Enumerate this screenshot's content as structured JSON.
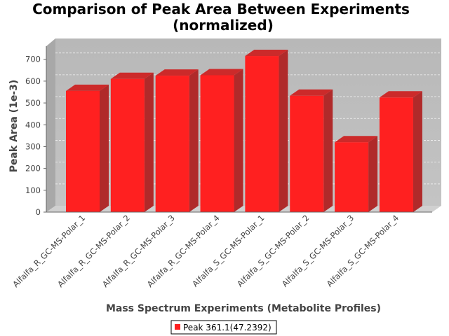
{
  "chart_data": {
    "type": "bar",
    "title": [
      "Comparison of Peak Area Between Experiments",
      "(normalized)"
    ],
    "xlabel": "Mass Spectrum Experiments (Metabolite Profiles)",
    "ylabel": "Peak Area (1e-3)",
    "ylim": [
      0,
      760
    ],
    "yticks": [
      0,
      100,
      200,
      300,
      400,
      500,
      600,
      700
    ],
    "grid": true,
    "legend_position": "bottom",
    "categories": [
      "Alfalfa_R_GC-MS-Polar_1",
      "Alfalfa_R_GC-MS-Polar_2",
      "Alfalfa_R_GC-MS-Polar_3",
      "Alfalfa_R_GC-MS-Polar_4",
      "Alfalfa_S_GC-MS-Polar_1",
      "Alfalfa_S_GC-MS-Polar_2",
      "Alfalfa_S_GC-MS-Polar_3",
      "Alfalfa_S_GC-MS-Polar_4"
    ],
    "series": [
      {
        "name": "Peak 361.1(47.2392)",
        "color": "#ff2020",
        "values": [
          555,
          610,
          625,
          627,
          715,
          533,
          320,
          525
        ]
      }
    ]
  }
}
